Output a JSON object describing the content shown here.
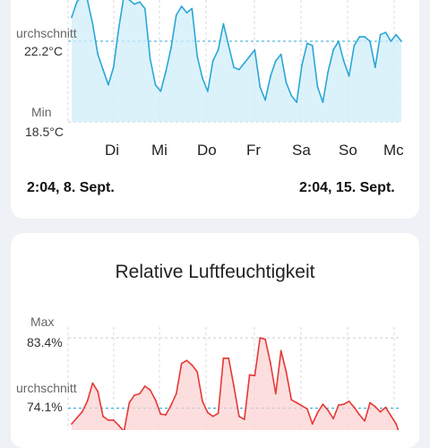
{
  "temperature_chart": {
    "avg_label": "urchschnitt",
    "avg_value": "22.2°C",
    "min_label": "Min",
    "min_value": "18.5°C",
    "days": [
      "Di",
      "Mi",
      "Do",
      "Fr",
      "Sa",
      "So",
      "Mc"
    ],
    "range_start": "2:04,  8. Sept.",
    "range_end": "2:04,  15. Sept.",
    "line_color": "#2aa7d6",
    "fill_color": "#cfeefa"
  },
  "humidity_chart": {
    "title": "Relative Luftfeuchtigkeit",
    "max_label": "Max",
    "max_value": "83.4%",
    "avg_label": "urchschnitt",
    "avg_value": "74.1%",
    "line_color": "#e53935",
    "fill_color": "#fbd3d3"
  },
  "chart_data": [
    {
      "type": "area",
      "ylabel": "",
      "ylim": [
        18.5,
        24.5
      ],
      "average": 22.2,
      "min": 18.5,
      "x_categories": [
        "Di",
        "Mi",
        "Do",
        "Fr",
        "Sa",
        "So",
        "Mc"
      ],
      "x": [
        0,
        0.1,
        0.2,
        0.3,
        0.4,
        0.5,
        0.6,
        0.7,
        0.8,
        0.9,
        1.0,
        1.1,
        1.2,
        1.3,
        1.4,
        1.5,
        1.6,
        1.7,
        1.8,
        1.9,
        2.0,
        2.1,
        2.2,
        2.3,
        2.4,
        2.5,
        2.6,
        2.7,
        2.8,
        2.9,
        3.0,
        3.1,
        3.2,
        3.3,
        3.4,
        3.5,
        3.6,
        3.7,
        3.8,
        3.9,
        4.0,
        4.1,
        4.2,
        4.3,
        4.4,
        4.5,
        4.6,
        4.7,
        4.8,
        4.9,
        5.0,
        5.1,
        5.2,
        5.3,
        5.4,
        5.5,
        5.6,
        5.7,
        5.8,
        5.9,
        6.0,
        6.1,
        6.2,
        6.3
      ],
      "values": [
        23.3,
        24.0,
        24.3,
        24.1,
        23.0,
        21.6,
        20.9,
        20.2,
        21.0,
        22.8,
        24.3,
        24.1,
        23.9,
        24.0,
        23.7,
        21.4,
        20.2,
        19.9,
        20.8,
        21.9,
        23.4,
        23.8,
        23.5,
        23.7,
        21.5,
        20.5,
        19.9,
        21.3,
        21.8,
        23.0,
        22.0,
        21.0,
        20.9,
        21.2,
        21.5,
        21.8,
        20.1,
        19.5,
        20.6,
        21.3,
        21.6,
        20.3,
        19.7,
        19.4,
        21.1,
        22.1,
        22.0,
        20.1,
        19.4,
        20.8,
        21.8,
        22.2,
        21.3,
        20.6,
        22.0,
        22.4,
        22.4,
        22.2,
        21.0,
        22.5,
        22.6,
        22.2,
        22.5,
        22.2
      ]
    },
    {
      "type": "area",
      "title": "Relative Luftfeuchtigkeit",
      "ylabel": "",
      "ylim": [
        70,
        84
      ],
      "max": 83.4,
      "average": 74.1,
      "x": [
        0,
        0.1,
        0.2,
        0.3,
        0.4,
        0.5,
        0.6,
        0.7,
        0.8,
        0.9,
        1.0,
        1.1,
        1.2,
        1.3,
        1.4,
        1.5,
        1.6,
        1.7,
        1.8,
        1.9,
        2.0,
        2.1,
        2.2,
        2.3,
        2.4,
        2.5,
        2.6,
        2.7,
        2.8,
        2.9,
        3.0,
        3.1,
        3.2,
        3.3,
        3.4,
        3.5,
        3.6,
        3.7,
        3.8,
        3.9,
        4.0,
        4.1,
        4.2,
        4.3,
        4.4,
        4.5,
        4.6,
        4.7,
        4.8,
        4.9,
        5.0,
        5.1,
        5.2,
        5.3,
        5.4,
        5.5,
        5.6,
        5.7,
        5.8,
        5.9,
        6.0,
        6.1,
        6.2,
        6.3
      ],
      "values": [
        72.0,
        72.8,
        73.6,
        75.0,
        77.4,
        76.3,
        73.0,
        72.5,
        72.5,
        71.8,
        71.0,
        74.8,
        75.8,
        76.0,
        77.0,
        76.5,
        75.2,
        73.3,
        73.2,
        74.5,
        76.0,
        80.0,
        80.4,
        79.8,
        78.9,
        75.0,
        73.5,
        73.0,
        73.4,
        80.7,
        80.7,
        77.0,
        73.0,
        72.6,
        78.5,
        78.4,
        83.4,
        83.2,
        80.0,
        76.0,
        81.7,
        78.9,
        75.2,
        74.8,
        74.4,
        74.0,
        72.0,
        73.5,
        74.6,
        73.8,
        72.7,
        74.5,
        74.6,
        75.0,
        74.2,
        73.2,
        72.4,
        74.8,
        74.3,
        73.6,
        74.2,
        73.1,
        72.0,
        70.0
      ]
    }
  ]
}
